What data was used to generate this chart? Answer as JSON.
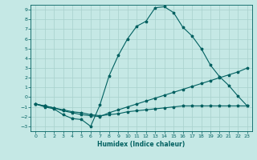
{
  "xlabel": "Humidex (Indice chaleur)",
  "xlim": [
    -0.5,
    23.5
  ],
  "ylim": [
    -3.5,
    9.5
  ],
  "bg_color": "#c5e8e5",
  "grid_color": "#a8d0cc",
  "line_color": "#006060",
  "xticks": [
    0,
    1,
    2,
    3,
    4,
    5,
    6,
    7,
    8,
    9,
    10,
    11,
    12,
    13,
    14,
    15,
    16,
    17,
    18,
    19,
    20,
    21,
    22,
    23
  ],
  "yticks": [
    -3,
    -2,
    -1,
    0,
    1,
    2,
    3,
    4,
    5,
    6,
    7,
    8,
    9
  ],
  "series": [
    {
      "x": [
        0,
        1,
        2,
        3,
        4,
        5,
        6,
        7,
        8,
        9,
        10,
        11,
        12,
        13,
        14,
        15,
        16,
        17,
        18,
        19,
        20,
        21,
        22,
        23
      ],
      "y": [
        -0.7,
        -1.0,
        -1.2,
        -1.8,
        -2.2,
        -2.3,
        -3.0,
        -0.8,
        2.2,
        4.3,
        6.0,
        7.3,
        7.8,
        9.2,
        9.3,
        8.7,
        7.2,
        6.3,
        5.0,
        3.3,
        2.1,
        1.2,
        0.1,
        -0.9
      ]
    },
    {
      "x": [
        0,
        1,
        2,
        3,
        4,
        5,
        6,
        7,
        8,
        9,
        10,
        11,
        12,
        13,
        14,
        15,
        16,
        17,
        18,
        19,
        20,
        21,
        22,
        23
      ],
      "y": [
        -0.7,
        -0.9,
        -1.1,
        -1.4,
        -1.6,
        -1.8,
        -1.9,
        -2.0,
        -1.6,
        -1.3,
        -1.0,
        -0.7,
        -0.4,
        -0.1,
        0.2,
        0.5,
        0.8,
        1.1,
        1.4,
        1.7,
        2.0,
        2.3,
        2.6,
        3.0
      ]
    },
    {
      "x": [
        0,
        1,
        2,
        3,
        4,
        5,
        6,
        7,
        8,
        9,
        10,
        11,
        12,
        13,
        14,
        15,
        16,
        17,
        18,
        19,
        20,
        21,
        22,
        23
      ],
      "y": [
        -0.7,
        -0.9,
        -1.1,
        -1.3,
        -1.5,
        -1.6,
        -1.8,
        -1.9,
        -1.8,
        -1.7,
        -1.5,
        -1.4,
        -1.3,
        -1.2,
        -1.1,
        -1.0,
        -0.9,
        -0.9,
        -0.9,
        -0.9,
        -0.9,
        -0.9,
        -0.9,
        -0.9
      ]
    }
  ]
}
